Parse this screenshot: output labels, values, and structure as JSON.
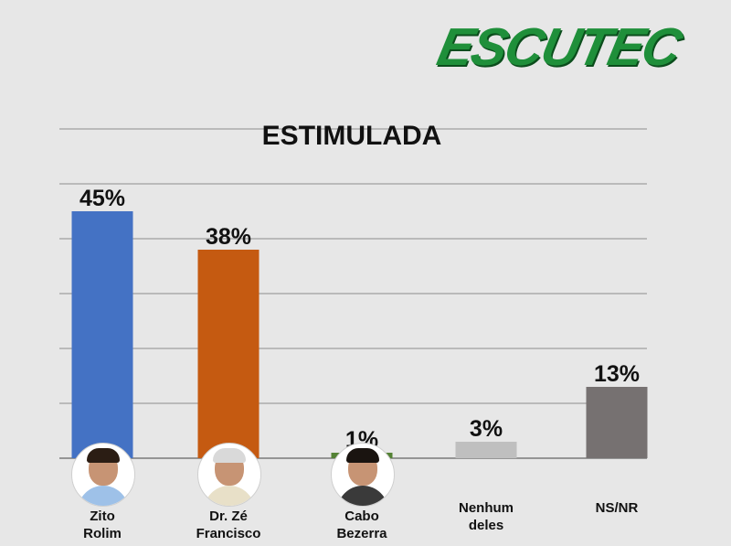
{
  "brand": {
    "logo_text": "ESCUTEC",
    "logo_color": "#1f8f3a"
  },
  "chart_data": {
    "type": "bar",
    "title": "ESTIMULADA",
    "categories": [
      "Zito\nRolim",
      "Dr. Zé\nFrancisco",
      "Cabo\nBezerra",
      "Nenhum\ndeles",
      "NS/NR"
    ],
    "values": [
      45,
      38,
      1,
      3,
      13
    ],
    "value_labels": [
      "45%",
      "38%",
      "1%",
      "3%",
      "13%"
    ],
    "colors": [
      "#4472c4",
      "#c55a11",
      "#548235",
      "#bfbfbf",
      "#767171"
    ],
    "photo_icons": [
      "candidate-photo-icon",
      "candidate-photo-icon",
      "candidate-photo-icon",
      null,
      null
    ],
    "ylim": [
      0,
      65
    ],
    "grid": true,
    "xlabel": "",
    "ylabel": ""
  }
}
